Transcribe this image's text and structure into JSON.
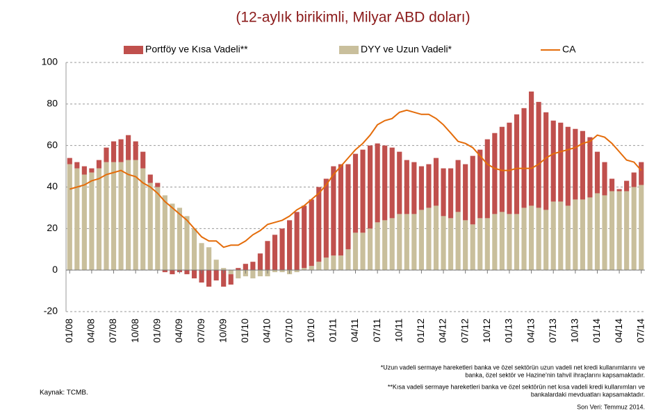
{
  "chart_data": {
    "type": "bar",
    "title": "(12-aylık birikimli, Milyar ABD doları)",
    "categories": [
      "01/08",
      null,
      null,
      "04/08",
      null,
      null,
      "07/08",
      null,
      null,
      "10/08",
      null,
      null,
      "01/09",
      null,
      null,
      "04/09",
      null,
      null,
      "07/09",
      null,
      null,
      "10/09",
      null,
      null,
      "01/10",
      null,
      null,
      "04/10",
      null,
      null,
      "07/10",
      null,
      null,
      "10/10",
      null,
      null,
      "01/11",
      null,
      null,
      "04/11",
      null,
      null,
      "07/11",
      null,
      null,
      "10/11",
      null,
      null,
      "01/12",
      null,
      null,
      "04/12",
      null,
      null,
      "07/12",
      null,
      null,
      "10/12",
      null,
      null,
      "01/13",
      null,
      null,
      "04/13",
      null,
      null,
      "07/13",
      null,
      null,
      "10/13",
      null,
      null,
      "01/14",
      null,
      null,
      "04/14",
      null,
      null,
      "07/14"
    ],
    "series": [
      {
        "name": "DYY ve Uzun Vadeli*",
        "kind": "bar",
        "color": "#c9bf9c",
        "values": [
          51,
          49,
          46,
          47,
          49,
          52,
          52,
          52,
          53,
          53,
          49,
          42,
          40,
          36,
          32,
          30,
          26,
          20,
          13,
          11,
          5,
          1,
          -2,
          -4,
          -3,
          -4,
          -3,
          -3,
          -1,
          -1,
          -2,
          -1,
          1,
          2,
          4,
          6,
          7,
          7,
          10,
          18,
          18,
          20,
          23,
          24,
          25,
          27,
          27,
          27,
          29,
          30,
          31,
          26,
          25,
          28,
          24,
          22,
          25,
          25,
          27,
          28,
          27,
          27,
          30,
          31,
          30,
          29,
          33,
          33,
          31,
          34,
          34,
          35,
          37,
          36,
          38,
          38,
          38,
          40,
          41
        ]
      },
      {
        "name": "Portföy ve Kısa Vadeli**",
        "kind": "bar",
        "color": "#c0504d",
        "values": [
          3,
          3,
          4,
          2,
          4,
          7,
          10,
          11,
          12,
          9,
          8,
          4,
          2,
          -1,
          -2,
          -1,
          -2,
          -4,
          -6,
          -8,
          -5,
          -8,
          -5,
          1,
          3,
          4,
          8,
          14,
          17,
          20,
          24,
          28,
          30,
          32,
          36,
          38,
          43,
          44,
          41,
          38,
          40,
          40,
          38,
          36,
          34,
          30,
          26,
          25,
          21,
          21,
          23,
          23,
          24,
          25,
          27,
          33,
          33,
          38,
          39,
          41,
          44,
          48,
          48,
          55,
          51,
          47,
          39,
          38,
          38,
          34,
          33,
          29,
          20,
          16,
          6,
          1,
          5,
          7,
          11
        ]
      },
      {
        "name": "CA",
        "kind": "line",
        "color": "#e46c0a",
        "values": [
          39,
          40,
          41,
          43,
          44,
          46,
          47,
          48,
          46,
          45,
          42,
          40,
          37,
          33,
          30,
          27,
          24,
          20,
          16,
          14,
          14,
          11,
          12,
          12,
          14,
          17,
          19,
          22,
          23,
          24,
          26,
          29,
          31,
          34,
          37,
          41,
          46,
          50,
          54,
          58,
          61,
          65,
          70,
          72,
          73,
          76,
          77,
          76,
          75,
          75,
          73,
          70,
          66,
          62,
          61,
          59,
          55,
          51,
          49,
          48,
          48,
          49,
          49,
          49,
          51,
          54,
          56,
          57,
          58,
          59,
          61,
          62,
          65,
          64,
          61,
          57,
          53,
          52,
          48
        ]
      }
    ],
    "stacked": true,
    "ylim": [
      -20,
      100
    ],
    "yticks": [
      -20,
      0,
      20,
      40,
      60,
      80,
      100
    ],
    "grid": true,
    "source": "Kaynak: TCMB.",
    "notes": [
      "*Uzun vadeli sermaye hareketleri banka ve özel sektörün uzun vadeli net kredi kullanımlarını ve",
      "banka, özel sektör ve Hazine’nin tahvil ihraçlarını kapsamaktadır.",
      "**Kısa vadeli sermaye hareketleri banka ve özel sektörün net kısa vadeli kredi kullanımları ve",
      "bankalardaki mevduatları kapsamaktadır.",
      "Son Veri: Temmuz 2014."
    ]
  }
}
